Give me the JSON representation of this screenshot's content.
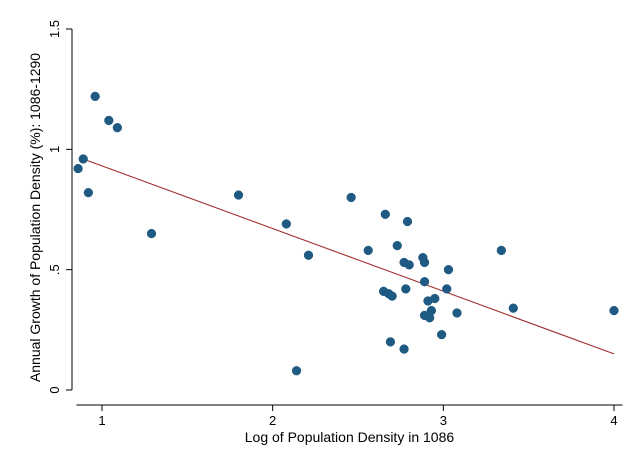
{
  "chart_data": {
    "type": "scatter",
    "xlabel": "Log of Population Density in 1086",
    "ylabel": "Annual Growth of Population Density (%): 1086-1290",
    "xlim": [
      0.85,
      4.05
    ],
    "ylim": [
      0,
      1.5
    ],
    "x_ticks": [
      {
        "value": 1,
        "label": "1"
      },
      {
        "value": 2,
        "label": "2"
      },
      {
        "value": 3,
        "label": "3"
      },
      {
        "value": 4,
        "label": "4"
      }
    ],
    "y_ticks": [
      {
        "value": 0,
        "label": "0"
      },
      {
        "value": 0.5,
        "label": ".5"
      },
      {
        "value": 1,
        "label": "1"
      },
      {
        "value": 1.5,
        "label": "1.5"
      }
    ],
    "grid": false,
    "legend": "none",
    "colors": {
      "marker": "#1f5a82",
      "fit_line": "#a02c2c",
      "axis": "#000000"
    },
    "series": [
      {
        "kind": "points",
        "points": [
          {
            "x": 0.86,
            "y": 0.92
          },
          {
            "x": 0.89,
            "y": 0.96
          },
          {
            "x": 0.92,
            "y": 0.82
          },
          {
            "x": 0.96,
            "y": 1.22
          },
          {
            "x": 1.04,
            "y": 1.12
          },
          {
            "x": 1.09,
            "y": 1.09
          },
          {
            "x": 1.29,
            "y": 0.65
          },
          {
            "x": 1.8,
            "y": 0.81
          },
          {
            "x": 2.08,
            "y": 0.69
          },
          {
            "x": 2.14,
            "y": 0.08
          },
          {
            "x": 2.21,
            "y": 0.56
          },
          {
            "x": 2.46,
            "y": 0.8
          },
          {
            "x": 2.56,
            "y": 0.58
          },
          {
            "x": 2.65,
            "y": 0.41
          },
          {
            "x": 2.66,
            "y": 0.73
          },
          {
            "x": 2.68,
            "y": 0.4
          },
          {
            "x": 2.69,
            "y": 0.2
          },
          {
            "x": 2.7,
            "y": 0.39
          },
          {
            "x": 2.73,
            "y": 0.6
          },
          {
            "x": 2.77,
            "y": 0.53
          },
          {
            "x": 2.77,
            "y": 0.17
          },
          {
            "x": 2.78,
            "y": 0.42
          },
          {
            "x": 2.79,
            "y": 0.7
          },
          {
            "x": 2.8,
            "y": 0.52
          },
          {
            "x": 2.88,
            "y": 0.55
          },
          {
            "x": 2.89,
            "y": 0.53
          },
          {
            "x": 2.89,
            "y": 0.45
          },
          {
            "x": 2.89,
            "y": 0.31
          },
          {
            "x": 2.91,
            "y": 0.37
          },
          {
            "x": 2.92,
            "y": 0.3
          },
          {
            "x": 2.93,
            "y": 0.33
          },
          {
            "x": 2.95,
            "y": 0.38
          },
          {
            "x": 2.99,
            "y": 0.23
          },
          {
            "x": 3.02,
            "y": 0.42
          },
          {
            "x": 3.03,
            "y": 0.5
          },
          {
            "x": 3.08,
            "y": 0.32
          },
          {
            "x": 3.34,
            "y": 0.58
          },
          {
            "x": 3.41,
            "y": 0.34
          },
          {
            "x": 4.0,
            "y": 0.33
          }
        ]
      },
      {
        "kind": "fit_line",
        "points": [
          {
            "x": 0.87,
            "y": 0.965
          },
          {
            "x": 4.0,
            "y": 0.15
          }
        ]
      }
    ]
  }
}
